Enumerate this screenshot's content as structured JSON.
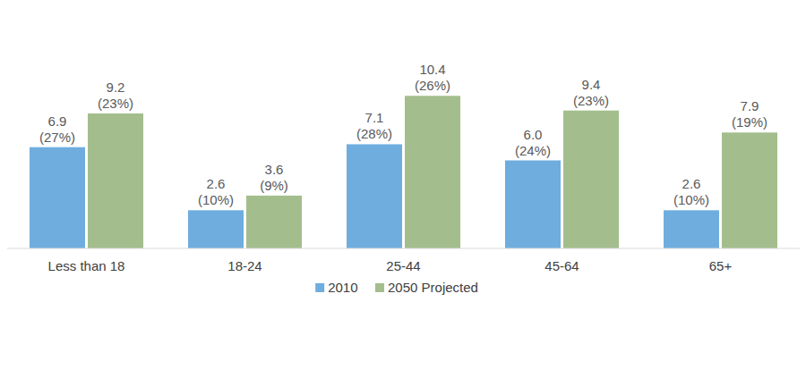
{
  "chart_data": {
    "type": "bar",
    "categories": [
      "Less than 18",
      "18-24",
      "25-44",
      "45-64",
      "65+"
    ],
    "series": [
      {
        "name": "2010",
        "color": "#6FADDF",
        "values": [
          6.9,
          2.6,
          7.1,
          6.0,
          2.6
        ],
        "value_labels": [
          "6.9",
          "2.6",
          "7.1",
          "6.0",
          "2.6"
        ],
        "share_labels": [
          "(27%)",
          "(10%)",
          "(28%)",
          "(24%)",
          "(10%)"
        ]
      },
      {
        "name": "2050 Projected",
        "color": "#A3BE8C",
        "values": [
          9.2,
          3.6,
          10.4,
          9.4,
          7.9
        ],
        "value_labels": [
          "9.2",
          "3.6",
          "10.4",
          "9.4",
          "7.9"
        ],
        "share_labels": [
          "(23%)",
          "(9%)",
          "(26%)",
          "(23%)",
          "(19%)"
        ]
      }
    ],
    "ylim": [
      0,
      12
    ],
    "grid": false,
    "legend": "bottom",
    "data_labels": true,
    "tick_labels": "x"
  }
}
